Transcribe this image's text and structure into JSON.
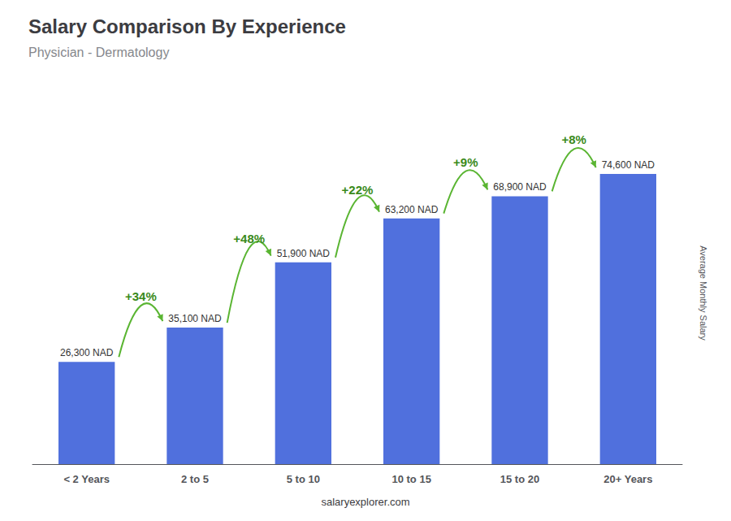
{
  "chart_data": {
    "type": "bar",
    "title": "Salary Comparison By Experience",
    "subtitle": "Physician - Dermatology",
    "ylabel": "Average Monthly Salary",
    "categories": [
      "< 2 Years",
      "2 to 5",
      "5 to 10",
      "10 to 15",
      "15 to 20",
      "20+ Years"
    ],
    "values": [
      26300,
      35100,
      51900,
      63200,
      68900,
      74600
    ],
    "value_labels": [
      "26,300 NAD",
      "35,100 NAD",
      "51,900 NAD",
      "63,200 NAD",
      "68,900 NAD",
      "74,600 NAD"
    ],
    "data_labels": true,
    "annotations": [
      "+34%",
      "+48%",
      "+22%",
      "+9%",
      "+8%"
    ],
    "footer": "salaryexplorer.com",
    "ylim": [
      0,
      88000
    ],
    "tick_labels": "x",
    "grid": false
  }
}
